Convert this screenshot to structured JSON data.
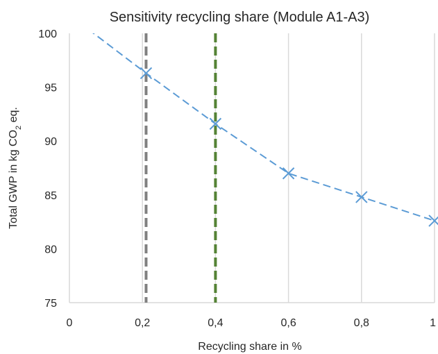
{
  "chart_data": {
    "type": "line",
    "title": "Sensitivity recycling share (Module A1-A3)",
    "xlabel": "Recycling share in %",
    "ylabel_parts": [
      "Total GWP in kg CO",
      "2",
      " eq."
    ],
    "xlim": [
      0,
      1
    ],
    "ylim": [
      75,
      100
    ],
    "x_ticks": [
      0,
      0.2,
      0.4,
      0.6,
      0.8,
      1
    ],
    "x_tick_labels": [
      "0",
      "0,2",
      "0,4",
      "0,6",
      "0,8",
      "1"
    ],
    "y_ticks": [
      75,
      80,
      85,
      90,
      95,
      100
    ],
    "y_tick_labels": [
      "75",
      "80",
      "85",
      "90",
      "95",
      "100"
    ],
    "grid": "vertical",
    "series": [
      {
        "color": "#5b9bd5",
        "style": "dashed",
        "marker": "x",
        "x": [
          0.0,
          0.21,
          0.4,
          0.6,
          0.8,
          1.0
        ],
        "y": [
          101.7,
          96.3,
          91.6,
          87.0,
          84.8,
          82.6
        ],
        "marked": [
          false,
          true,
          true,
          true,
          true,
          true
        ]
      }
    ],
    "reference_lines": [
      {
        "x": 0.21,
        "color": "#808080",
        "style": "dashed"
      },
      {
        "x": 0.4,
        "color": "#548235",
        "style": "dashed"
      }
    ]
  }
}
